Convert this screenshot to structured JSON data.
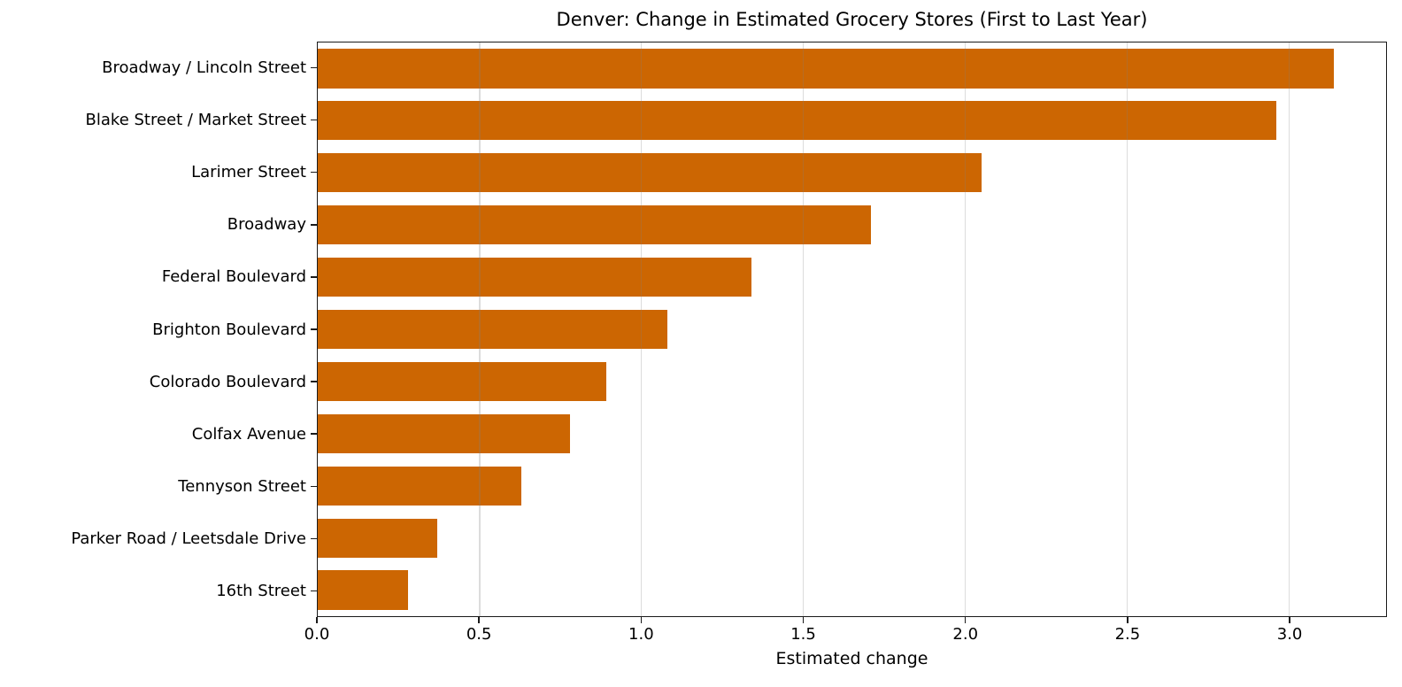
{
  "chart_data": {
    "type": "bar",
    "orientation": "horizontal",
    "title": "Denver: Change in Estimated Grocery Stores (First to Last Year)",
    "xlabel": "Estimated change",
    "ylabel": "",
    "categories": [
      "Broadway / Lincoln Street",
      "Blake Street / Market Street",
      "Larimer Street",
      "Broadway",
      "Federal Boulevard",
      "Brighton Boulevard",
      "Colorado Boulevard",
      "Colfax Avenue",
      "Tennyson Street",
      "Parker Road / Leetsdale Drive",
      "16th Street"
    ],
    "values": [
      3.14,
      2.96,
      2.05,
      1.71,
      1.34,
      1.08,
      0.89,
      0.78,
      0.63,
      0.37,
      0.28
    ],
    "xlim": [
      0,
      3.3
    ],
    "xticks": [
      {
        "value": 0.0,
        "label": "0.0"
      },
      {
        "value": 0.5,
        "label": "0.5"
      },
      {
        "value": 1.0,
        "label": "1.0"
      },
      {
        "value": 1.5,
        "label": "1.5"
      },
      {
        "value": 2.0,
        "label": "2.0"
      },
      {
        "value": 2.5,
        "label": "2.5"
      },
      {
        "value": 3.0,
        "label": "3.0"
      }
    ],
    "grid": "vertical",
    "legend_position": "none",
    "bar_color": "#CC6602",
    "spine_color": "#1a1a1a",
    "background_color": "#ffffff"
  }
}
